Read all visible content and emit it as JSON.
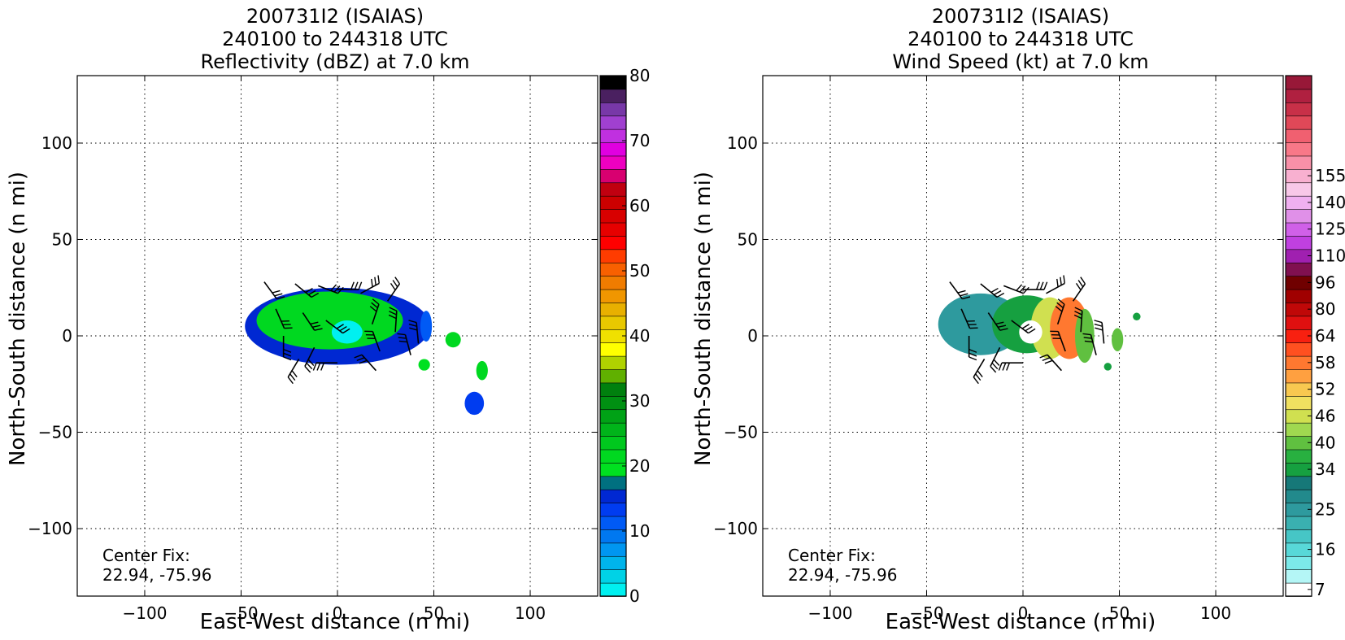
{
  "chart_data": [
    {
      "type": "heatmap",
      "title_lines": [
        "200731I2 (ISAIAS)",
        "240100 to 244318 UTC",
        "Reflectivity (dBZ) at 7.0 km"
      ],
      "xlabel": "East-West distance (n mi)",
      "ylabel": "North-South distance (n mi)",
      "xlim": [
        -135,
        135
      ],
      "ylim": [
        -135,
        135
      ],
      "xticks": [
        -100,
        -50,
        0,
        50,
        100
      ],
      "yticks": [
        -100,
        -50,
        0,
        50,
        100
      ],
      "xtick_labels": [
        "−100",
        "−50",
        "0",
        "50",
        "100"
      ],
      "ytick_labels": [
        "−100",
        "−50",
        "0",
        "50",
        "100"
      ],
      "grid": true,
      "annotation_lines": [
        "Center Fix:",
        "22.94, -75.96"
      ],
      "colorbar": {
        "min": 0,
        "max": 80,
        "tick_values": [
          0,
          10,
          20,
          30,
          40,
          50,
          60,
          70,
          80
        ],
        "tick_labels": [
          "0",
          "10",
          "20",
          "30",
          "40",
          "50",
          "60",
          "70",
          "80"
        ],
        "colors": [
          "#00f0f0",
          "#00d2e6",
          "#00b4eb",
          "#0096f0",
          "#0078f0",
          "#005af5",
          "#003cf0",
          "#0028d2",
          "#007080",
          "#00e020",
          "#00d820",
          "#00c81e",
          "#00b41a",
          "#00a216",
          "#009012",
          "#00800e",
          "#60b000",
          "#b0d200",
          "#ffff00",
          "#f0e000",
          "#e8c800",
          "#e8b000",
          "#f09600",
          "#f07c00",
          "#f86000",
          "#ff3c00",
          "#ff0000",
          "#e60000",
          "#d80000",
          "#cc0000",
          "#c00010",
          "#d80070",
          "#ee00c0",
          "#e000e0",
          "#c030e0",
          "#a040d0",
          "#7838a8",
          "#4a2060",
          "#000000"
        ]
      },
      "blobs": [
        {
          "x": 0,
          "y": 5,
          "rx": 48,
          "ry": 20,
          "value": 15
        },
        {
          "x": -4,
          "y": 8,
          "rx": 38,
          "ry": 15,
          "value": 22
        },
        {
          "x": 5,
          "y": 2,
          "rx": 8,
          "ry": 6,
          "value": 0
        },
        {
          "x": 46,
          "y": 5,
          "rx": 3,
          "ry": 8,
          "value": 12
        },
        {
          "x": 60,
          "y": -2,
          "rx": 4,
          "ry": 4,
          "value": 22
        },
        {
          "x": 75,
          "y": -18,
          "rx": 3,
          "ry": 5,
          "value": 22
        },
        {
          "x": 71,
          "y": -35,
          "rx": 5,
          "ry": 6,
          "value": 14
        },
        {
          "x": 45,
          "y": -15,
          "rx": 3,
          "ry": 3,
          "value": 20
        }
      ],
      "wind_barbs": [
        {
          "x": -38,
          "y": 28
        },
        {
          "x": -22,
          "y": 27
        },
        {
          "x": -10,
          "y": 26
        },
        {
          "x": 0,
          "y": 24
        },
        {
          "x": 12,
          "y": 22
        },
        {
          "x": 26,
          "y": 18
        },
        {
          "x": -32,
          "y": 14
        },
        {
          "x": -18,
          "y": 12
        },
        {
          "x": -6,
          "y": 8
        },
        {
          "x": 18,
          "y": 6
        },
        {
          "x": 30,
          "y": 2
        },
        {
          "x": -28,
          "y": 0
        },
        {
          "x": -12,
          "y": -6
        },
        {
          "x": 22,
          "y": -8
        },
        {
          "x": 42,
          "y": -4
        },
        {
          "x": -20,
          "y": -12
        },
        {
          "x": 0,
          "y": -14
        },
        {
          "x": 20,
          "y": -18
        },
        {
          "x": 38,
          "y": -10
        }
      ]
    },
    {
      "type": "heatmap",
      "title_lines": [
        "200731I2 (ISAIAS)",
        "240100 to 244318 UTC",
        "Wind Speed (kt) at 7.0 km"
      ],
      "xlabel": "East-West distance (n mi)",
      "ylabel": "North-South distance (n mi)",
      "xlim": [
        -135,
        135
      ],
      "ylim": [
        -135,
        135
      ],
      "xticks": [
        -100,
        -50,
        0,
        50,
        100
      ],
      "yticks": [
        -100,
        -50,
        0,
        50,
        100
      ],
      "xtick_labels": [
        "−100",
        "−50",
        "0",
        "50",
        "100"
      ],
      "ytick_labels": [
        "−100",
        "−50",
        "0",
        "50",
        "100"
      ],
      "grid": true,
      "annotation_lines": [
        "Center Fix:",
        "22.94, -75.96"
      ],
      "colorbar": {
        "tick_labels": [
          "7",
          "16",
          "25",
          "34",
          "40",
          "46",
          "52",
          "58",
          "64",
          "80",
          "96",
          "110",
          "125",
          "140",
          "155"
        ],
        "tick_bins": [
          0,
          3,
          6,
          9,
          11,
          13,
          15,
          17,
          19,
          21,
          23,
          25,
          27,
          29,
          31
        ],
        "colors": [
          "#ffffff",
          "#b4f6f6",
          "#7ceaea",
          "#58d8d8",
          "#46c6c6",
          "#3ab0b0",
          "#2e9a9e",
          "#228a8c",
          "#167878",
          "#16a040",
          "#28b040",
          "#60c040",
          "#a0d850",
          "#d0e050",
          "#f0e060",
          "#f8c850",
          "#ffa040",
          "#ff7830",
          "#ff5020",
          "#f82010",
          "#e01010",
          "#c00808",
          "#a00000",
          "#700000",
          "#801050",
          "#a020b0",
          "#c040e0",
          "#d060e8",
          "#e090e8",
          "#f0b0f0",
          "#f8c8e8",
          "#f8b0d0",
          "#f890a8",
          "#f87888",
          "#f06070",
          "#e04858",
          "#c83048",
          "#b02040",
          "#981838"
        ]
      },
      "blobs": [
        {
          "x": -22,
          "y": 6,
          "rx": 22,
          "ry": 16,
          "value": 25
        },
        {
          "x": 2,
          "y": 6,
          "rx": 18,
          "ry": 15,
          "value": 34
        },
        {
          "x": 14,
          "y": 4,
          "rx": 10,
          "ry": 16,
          "value": 46
        },
        {
          "x": 24,
          "y": 4,
          "rx": 10,
          "ry": 16,
          "value": 58
        },
        {
          "x": 32,
          "y": 0,
          "rx": 5,
          "ry": 14,
          "value": 40
        },
        {
          "x": 4,
          "y": 2,
          "rx": 6,
          "ry": 6,
          "value": 7
        },
        {
          "x": 49,
          "y": -2,
          "rx": 3,
          "ry": 6,
          "value": 40
        },
        {
          "x": 59,
          "y": 10,
          "rx": 2,
          "ry": 2,
          "value": 34
        },
        {
          "x": 44,
          "y": -16,
          "rx": 2,
          "ry": 2,
          "value": 34
        }
      ],
      "wind_barbs": [
        {
          "x": -38,
          "y": 28
        },
        {
          "x": -22,
          "y": 27
        },
        {
          "x": -10,
          "y": 26
        },
        {
          "x": 0,
          "y": 24
        },
        {
          "x": 12,
          "y": 22
        },
        {
          "x": 26,
          "y": 18
        },
        {
          "x": -32,
          "y": 14
        },
        {
          "x": -18,
          "y": 12
        },
        {
          "x": -6,
          "y": 8
        },
        {
          "x": 18,
          "y": 6
        },
        {
          "x": 30,
          "y": 2
        },
        {
          "x": -28,
          "y": 0
        },
        {
          "x": -12,
          "y": -6
        },
        {
          "x": 22,
          "y": -8
        },
        {
          "x": 42,
          "y": -4
        },
        {
          "x": -20,
          "y": -12
        },
        {
          "x": 0,
          "y": -14
        },
        {
          "x": 20,
          "y": -18
        },
        {
          "x": 38,
          "y": -10
        }
      ]
    }
  ]
}
